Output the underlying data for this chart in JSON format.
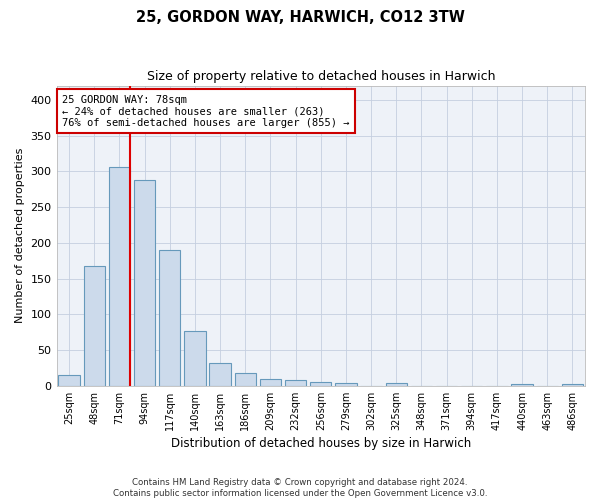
{
  "title_line1": "25, GORDON WAY, HARWICH, CO12 3TW",
  "title_line2": "Size of property relative to detached houses in Harwich",
  "xlabel": "Distribution of detached houses by size in Harwich",
  "ylabel": "Number of detached properties",
  "categories": [
    "25sqm",
    "48sqm",
    "71sqm",
    "94sqm",
    "117sqm",
    "140sqm",
    "163sqm",
    "186sqm",
    "209sqm",
    "232sqm",
    "256sqm",
    "279sqm",
    "302sqm",
    "325sqm",
    "348sqm",
    "371sqm",
    "394sqm",
    "417sqm",
    "440sqm",
    "463sqm",
    "486sqm"
  ],
  "values": [
    15,
    167,
    306,
    288,
    190,
    76,
    32,
    18,
    9,
    8,
    5,
    4,
    0,
    4,
    0,
    0,
    0,
    0,
    2,
    0,
    2
  ],
  "bar_color": "#ccdaeb",
  "bar_edge_color": "#6699bb",
  "red_line_index": 2,
  "annotation_line1": "25 GORDON WAY: 78sqm",
  "annotation_line2": "← 24% of detached houses are smaller (263)",
  "annotation_line3": "76% of semi-detached houses are larger (855) →",
  "annotation_box_color": "#ffffff",
  "annotation_box_edge": "#cc0000",
  "red_line_color": "#dd0000",
  "grid_color": "#c5cfe0",
  "background_color": "#eef2f8",
  "ylim": [
    0,
    420
  ],
  "yticks": [
    0,
    50,
    100,
    150,
    200,
    250,
    300,
    350,
    400
  ],
  "footer_line1": "Contains HM Land Registry data © Crown copyright and database right 2024.",
  "footer_line2": "Contains public sector information licensed under the Open Government Licence v3.0."
}
